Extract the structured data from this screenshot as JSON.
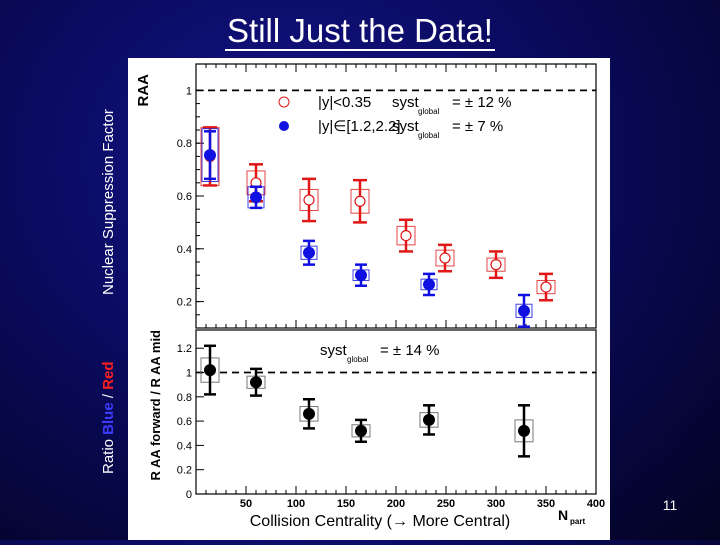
{
  "slide": {
    "title": "Still Just the Data!",
    "ylabel_top": "Nuclear Suppression Factor",
    "ylabel_bottom_prefix": "Ratio ",
    "ylabel_bottom_blue": "Blue",
    "ylabel_bottom_sep": " / ",
    "ylabel_bottom_red": "Red",
    "xlabel": "Collision Centrality (→ More Central)",
    "page_number": "11"
  },
  "colors": {
    "red": "#e01818",
    "blue": "#1010e0",
    "black": "#000000"
  },
  "chart_data": [
    {
      "type": "scatter",
      "ylabel": "R_AA",
      "ylim": [
        0.1,
        1.1
      ],
      "yticks": [
        0.2,
        0.4,
        0.6,
        0.8,
        1
      ],
      "reference_line": 1,
      "legend_position": "top-right",
      "series": [
        {
          "name": "|y|<0.35",
          "syst_label": "syst",
          "syst_sub": "global",
          "syst_value": "= ± 12 %",
          "color": "#e01818",
          "marker": "open-circle",
          "points": [
            {
              "x": 14,
              "y": 0.75,
              "err": 0.11,
              "box": 0.22
            },
            {
              "x": 60,
              "y": 0.65,
              "err": 0.07,
              "box": 0.09
            },
            {
              "x": 113,
              "y": 0.585,
              "err": 0.08,
              "box": 0.08
            },
            {
              "x": 164,
              "y": 0.58,
              "err": 0.08,
              "box": 0.09
            },
            {
              "x": 210,
              "y": 0.45,
              "err": 0.06,
              "box": 0.07
            },
            {
              "x": 249,
              "y": 0.365,
              "err": 0.05,
              "box": 0.06
            },
            {
              "x": 300,
              "y": 0.34,
              "err": 0.05,
              "box": 0.05
            },
            {
              "x": 350,
              "y": 0.255,
              "err": 0.05,
              "box": 0.05
            }
          ]
        },
        {
          "name": "|y|∈[1.2,2.2]",
          "syst_label": "syst",
          "syst_sub": "global",
          "syst_value": "= ± 7 %",
          "color": "#1010e0",
          "marker": "filled-circle",
          "points": [
            {
              "x": 14,
              "y": 0.755,
              "err": 0.09,
              "box": 0.2
            },
            {
              "x": 60,
              "y": 0.595,
              "err": 0.04,
              "box": 0.08
            },
            {
              "x": 113,
              "y": 0.385,
              "err": 0.045,
              "box": 0.05
            },
            {
              "x": 165,
              "y": 0.3,
              "err": 0.04,
              "box": 0.04
            },
            {
              "x": 233,
              "y": 0.265,
              "err": 0.04,
              "box": 0.04
            },
            {
              "x": 328,
              "y": 0.165,
              "err": 0.06,
              "box": 0.05
            }
          ]
        }
      ]
    },
    {
      "type": "scatter",
      "xlabel": "N_part",
      "ylabel": "R_AA^forward / R_AA^mid",
      "xlim": [
        0,
        400
      ],
      "ylim": [
        0,
        1.35
      ],
      "xticks": [
        50,
        100,
        150,
        200,
        250,
        300,
        350,
        400
      ],
      "yticks": [
        0,
        0.2,
        0.4,
        0.6,
        0.8,
        1,
        1.2
      ],
      "reference_line": 1,
      "syst_label": "syst",
      "syst_sub": "global",
      "syst_value": "= ± 14 %",
      "series": [
        {
          "color": "#000000",
          "marker": "filled-circle",
          "points": [
            {
              "x": 14,
              "y": 1.02,
              "err": 0.2,
              "box": 0.2
            },
            {
              "x": 60,
              "y": 0.92,
              "err": 0.11,
              "box": 0.1
            },
            {
              "x": 113,
              "y": 0.66,
              "err": 0.12,
              "box": 0.12
            },
            {
              "x": 165,
              "y": 0.52,
              "err": 0.09,
              "box": 0.1
            },
            {
              "x": 233,
              "y": 0.61,
              "err": 0.12,
              "box": 0.12
            },
            {
              "x": 328,
              "y": 0.52,
              "err": 0.21,
              "box": 0.18
            }
          ]
        }
      ]
    }
  ]
}
